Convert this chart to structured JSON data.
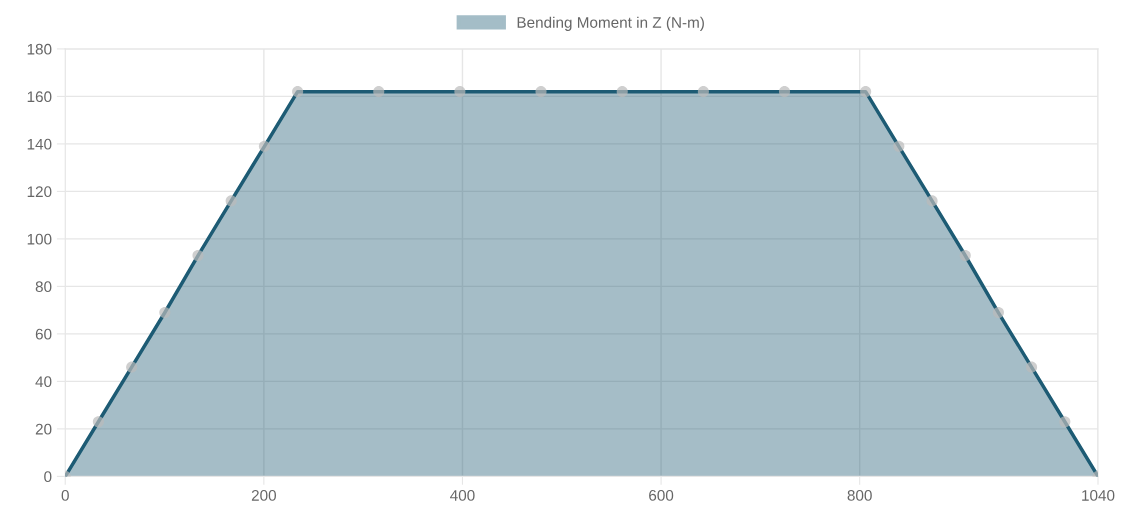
{
  "chart_data": {
    "type": "area",
    "x": [
      0,
      33.4,
      66.9,
      100.3,
      133.7,
      167.1,
      200.6,
      234,
      315.7,
      397.4,
      479.1,
      560.9,
      642.6,
      724.3,
      806,
      839.4,
      872.9,
      906.3,
      939.7,
      973.1,
      1006.6,
      1040
    ],
    "series": [
      {
        "name": "Bending Moment in Z (N-m)",
        "color": "#1d5b74",
        "values": [
          0,
          23,
          46,
          69,
          93,
          116,
          139,
          162,
          162,
          162,
          162,
          162,
          162,
          162,
          162,
          139,
          116,
          93,
          69,
          46,
          23,
          0
        ]
      }
    ],
    "xlim": [
      0,
      1040
    ],
    "xticks": [
      0,
      200,
      400,
      600,
      800,
      1040
    ],
    "ylim": [
      0,
      180
    ],
    "yticks": [
      0,
      20,
      40,
      60,
      80,
      100,
      120,
      140,
      160,
      180
    ],
    "grid": true,
    "legend": "top",
    "marker": "circle",
    "line_style": "solid"
  }
}
